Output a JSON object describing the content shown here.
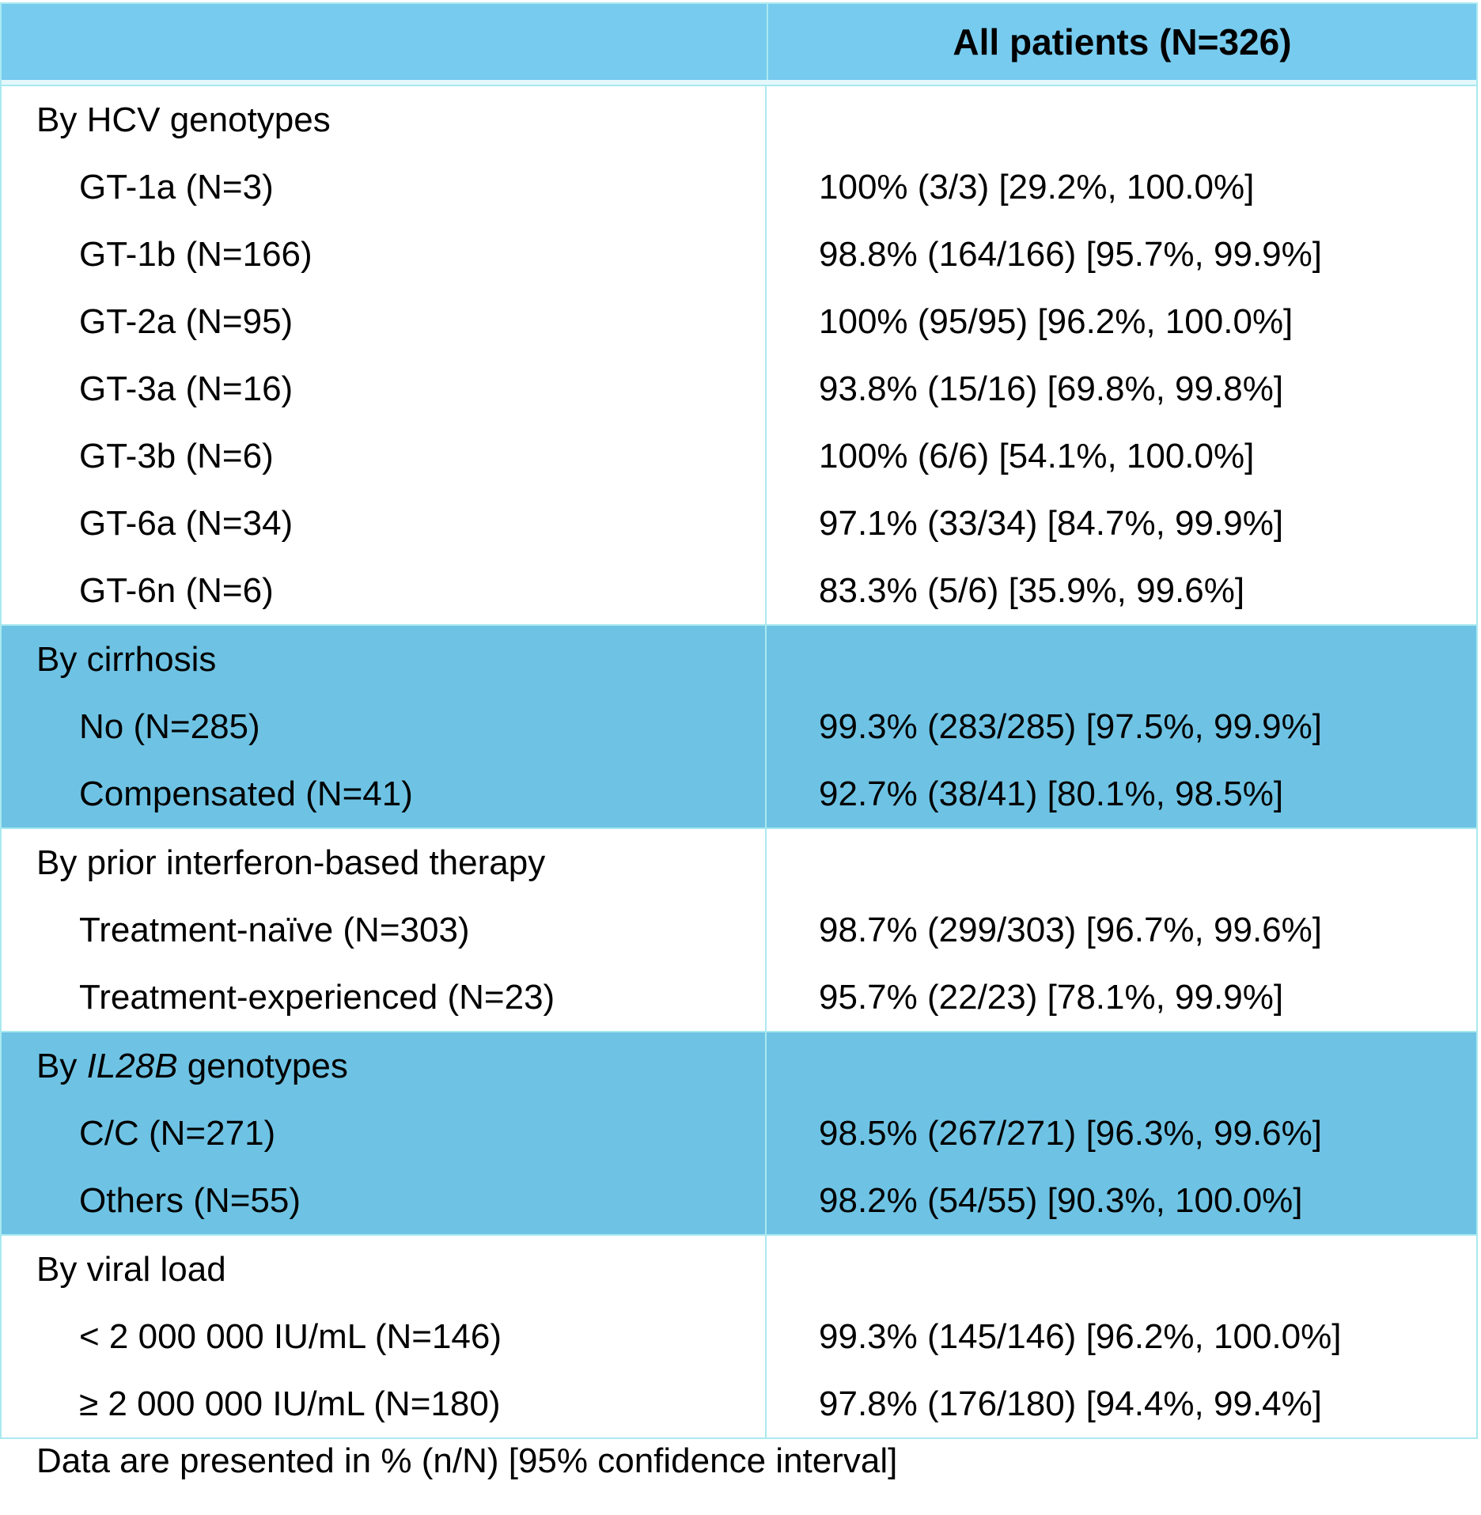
{
  "header": {
    "column_label": "All patients (N=326)"
  },
  "groups": [
    {
      "label": "By HCV genotypes",
      "shaded": false,
      "items": [
        {
          "label": "GT-1a (N=3)",
          "value": "100% (3/3) [29.2%, 100.0%]"
        },
        {
          "label": "GT-1b (N=166)",
          "value": "98.8% (164/166) [95.7%, 99.9%]"
        },
        {
          "label": "GT-2a (N=95)",
          "value": "100% (95/95) [96.2%, 100.0%]"
        },
        {
          "label": "GT-3a (N=16)",
          "value": "93.8% (15/16) [69.8%, 99.8%]"
        },
        {
          "label": "GT-3b (N=6)",
          "value": "100% (6/6) [54.1%, 100.0%]"
        },
        {
          "label": "GT-6a (N=34)",
          "value": "97.1% (33/34) [84.7%, 99.9%]"
        },
        {
          "label": "GT-6n (N=6)",
          "value": "83.3% (5/6) [35.9%, 99.6%]"
        }
      ]
    },
    {
      "label": "By cirrhosis",
      "shaded": true,
      "items": [
        {
          "label": "No (N=285)",
          "value": "99.3% (283/285) [97.5%, 99.9%]"
        },
        {
          "label": "Compensated (N=41)",
          "value": "92.7% (38/41) [80.1%, 98.5%]"
        }
      ]
    },
    {
      "label": "By prior interferon-based therapy",
      "shaded": false,
      "items": [
        {
          "label": "Treatment-naïve (N=303)",
          "value": "98.7% (299/303) [96.7%, 99.6%]"
        },
        {
          "label": "Treatment-experienced (N=23)",
          "value": "95.7% (22/23) [78.1%, 99.9%]"
        }
      ]
    },
    {
      "label_prefix": "By ",
      "label_italic": "IL28B",
      "label_suffix": " genotypes",
      "shaded": true,
      "items": [
        {
          "label": "C/C (N=271)",
          "value": "98.5% (267/271) [96.3%, 99.6%]"
        },
        {
          "label": "Others (N=55)",
          "value": "98.2% (54/55) [90.3%, 100.0%]"
        }
      ]
    },
    {
      "label": "By viral load",
      "shaded": false,
      "items": [
        {
          "label": "< 2 000 000 IU/mL (N=146)",
          "value": "99.3% (145/146) [96.2%, 100.0%]"
        },
        {
          "label": "≥ 2 000 000 IU/mL (N=180)",
          "value": "97.8% (176/180) [94.4%, 99.4%]"
        }
      ]
    }
  ],
  "footnote": "Data are presented in % (n/N) [95% confidence interval]",
  "colors": {
    "header_bg": "#77cbef",
    "shaded_bg": "#6ec3e4",
    "border": "#a9e9ef"
  }
}
